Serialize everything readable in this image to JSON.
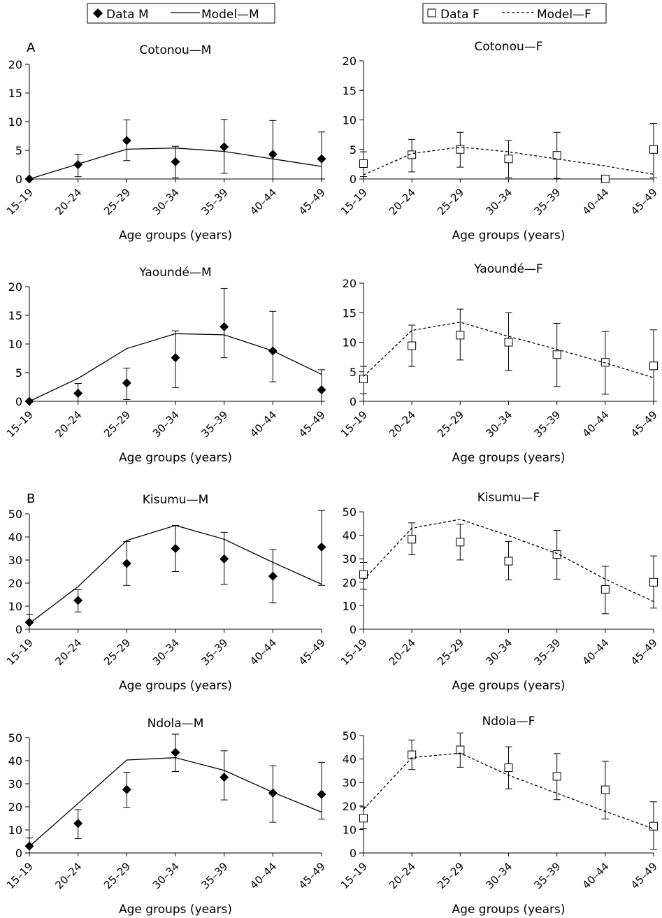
{
  "legends": {
    "male": {
      "data_label": "Data M",
      "model_label": "Model—M"
    },
    "female": {
      "data_label": "Data F",
      "model_label": "Model—F"
    }
  },
  "panel_labels": {
    "A": "A",
    "B": "B"
  },
  "chart_data": [
    {
      "type": "line",
      "title": "Cotonou—M",
      "xlabel": "Age groups (years)",
      "ylabel": "",
      "categories": [
        "15–19",
        "20–24",
        "25–29",
        "30–34",
        "35–39",
        "40–44",
        "45–49"
      ],
      "ylim": [
        0,
        20
      ],
      "yticks": [
        0,
        5,
        10,
        15,
        20
      ],
      "series": [
        {
          "name": "Data M",
          "kind": "points",
          "values": [
            0,
            2.5,
            6.7,
            3,
            5.6,
            4.3,
            3.5
          ],
          "err_low": [
            0,
            0.4,
            3.2,
            0.2,
            1,
            0,
            0
          ],
          "err_high": [
            0,
            4.3,
            10.3,
            5.7,
            10.4,
            10.2,
            8.2
          ]
        },
        {
          "name": "Model—M",
          "kind": "line",
          "values": [
            0,
            2.6,
            5.2,
            5.4,
            4.8,
            3.5,
            2.2
          ]
        }
      ]
    },
    {
      "type": "line",
      "title": "Cotonou—F",
      "xlabel": "Age groups (years)",
      "ylabel": "",
      "categories": [
        "15–19",
        "20–24",
        "25–29",
        "30–34",
        "35–39",
        "40–44",
        "45–49"
      ],
      "ylim": [
        0,
        20
      ],
      "yticks": [
        0,
        5,
        10,
        15,
        20
      ],
      "series": [
        {
          "name": "Data F",
          "kind": "points",
          "values": [
            2.6,
            4.1,
            5,
            3.4,
            4,
            0,
            5
          ],
          "err_low": [
            0.4,
            1.2,
            2,
            0.2,
            0.1,
            0,
            0.2
          ],
          "err_high": [
            4.6,
            6.7,
            7.9,
            6.5,
            7.9,
            0,
            9.4
          ]
        },
        {
          "name": "Model—F",
          "kind": "line",
          "values": [
            0.7,
            4.3,
            5.4,
            4.6,
            3.4,
            2.2,
            0.8
          ]
        }
      ]
    },
    {
      "type": "line",
      "title": "Yaoundé—M",
      "xlabel": "Age groups (years)",
      "ylabel": "",
      "categories": [
        "15–19",
        "20–24",
        "25–29",
        "30–34",
        "35–39",
        "40–44",
        "45–49"
      ],
      "ylim": [
        0,
        20
      ],
      "yticks": [
        0,
        5,
        10,
        15,
        20
      ],
      "series": [
        {
          "name": "Data M",
          "kind": "points",
          "values": [
            0,
            1.4,
            3.2,
            7.6,
            13,
            8.8,
            2
          ],
          "err_low": [
            0,
            0,
            0.3,
            2.4,
            7.6,
            3.4,
            0
          ],
          "err_high": [
            0,
            3.1,
            5.8,
            12.3,
            19.7,
            15.7,
            5.5
          ]
        },
        {
          "name": "Model—M",
          "kind": "line",
          "values": [
            0,
            4,
            9.2,
            11.8,
            11.6,
            8.8,
            4.7
          ]
        }
      ]
    },
    {
      "type": "line",
      "title": "Yaoundé—F",
      "xlabel": "Age groups (years)",
      "ylabel": "",
      "categories": [
        "15–19",
        "20–24",
        "25–29",
        "30–34",
        "35–39",
        "40–44",
        "45–49"
      ],
      "ylim": [
        0,
        20
      ],
      "yticks": [
        0,
        5,
        10,
        15,
        20
      ],
      "series": [
        {
          "name": "Data F",
          "kind": "points",
          "values": [
            3.8,
            9.4,
            11.2,
            10,
            7.9,
            6.6,
            6
          ],
          "err_low": [
            1.3,
            5.9,
            7,
            5.2,
            2.5,
            1.2,
            0
          ],
          "err_high": [
            5.9,
            12.9,
            15.6,
            15,
            13.2,
            11.8,
            12.1
          ]
        },
        {
          "name": "Model—F",
          "kind": "line",
          "values": [
            4.2,
            12,
            13.4,
            11,
            8.8,
            6.5,
            4
          ]
        }
      ]
    },
    {
      "type": "line",
      "title": "Kisumu—M",
      "xlabel": "Age groups (years)",
      "ylabel": "",
      "categories": [
        "15–19",
        "20–24",
        "25–29",
        "30–34",
        "35–39",
        "40–44",
        "45–49"
      ],
      "ylim": [
        0,
        50
      ],
      "yticks": [
        0,
        10,
        20,
        30,
        40,
        50
      ],
      "series": [
        {
          "name": "Data M",
          "kind": "points",
          "values": [
            3,
            12.5,
            28.5,
            35,
            30.5,
            23,
            35.6
          ],
          "err_low": [
            0,
            7.5,
            19,
            25,
            19.5,
            11.5,
            19
          ],
          "err_high": [
            6.5,
            17.2,
            38,
            45,
            42,
            34.5,
            51.5
          ]
        },
        {
          "name": "Model—M",
          "kind": "line",
          "values": [
            2.5,
            18.5,
            38.5,
            45,
            39,
            29,
            19.5
          ]
        }
      ]
    },
    {
      "type": "line",
      "title": "Kisumu—F",
      "xlabel": "Age groups (years)",
      "ylabel": "",
      "categories": [
        "15–19",
        "20–24",
        "25–29",
        "30–34",
        "35–39",
        "40–44",
        "45–49"
      ],
      "ylim": [
        0,
        50
      ],
      "yticks": [
        0,
        10,
        20,
        30,
        40,
        50
      ],
      "series": [
        {
          "name": "Data F",
          "kind": "points",
          "values": [
            23.3,
            38.3,
            37.1,
            29,
            31.8,
            17,
            20
          ],
          "err_low": [
            17,
            31.7,
            29.5,
            21,
            21.3,
            6.6,
            9
          ],
          "err_high": [
            28.4,
            45.3,
            44.7,
            37.4,
            42.1,
            26.8,
            31.2
          ]
        },
        {
          "name": "Model—F",
          "kind": "line",
          "values": [
            21,
            43,
            46.8,
            39.8,
            32.3,
            21.3,
            11.8
          ]
        }
      ]
    },
    {
      "type": "line",
      "title": "Ndola—M",
      "xlabel": "Age groups (years)",
      "ylabel": "",
      "categories": [
        "15–19",
        "20–24",
        "25–29",
        "30–34",
        "35–39",
        "40–44",
        "45–49"
      ],
      "ylim": [
        0,
        50
      ],
      "yticks": [
        0,
        10,
        20,
        30,
        40,
        50
      ],
      "series": [
        {
          "name": "Data M",
          "kind": "points",
          "values": [
            3,
            12.8,
            27.5,
            43.6,
            32.8,
            26,
            25.4
          ],
          "err_low": [
            0,
            6.2,
            19.8,
            35.3,
            23,
            13.3,
            14.7
          ],
          "err_high": [
            6.5,
            18.8,
            35,
            51.5,
            44.3,
            37.8,
            39.3
          ]
        },
        {
          "name": "Model—M",
          "kind": "line",
          "values": [
            2.8,
            21.5,
            40.3,
            41.3,
            35.8,
            26.3,
            17.7
          ]
        }
      ]
    },
    {
      "type": "line",
      "title": "Ndola—F",
      "xlabel": "Age groups (years)",
      "ylabel": "",
      "categories": [
        "15–19",
        "20–24",
        "25–29",
        "30–34",
        "35–39",
        "40–44",
        "45–49"
      ],
      "ylim": [
        0,
        50
      ],
      "yticks": [
        0,
        10,
        20,
        30,
        40,
        50
      ],
      "series": [
        {
          "name": "Data F",
          "kind": "points",
          "values": [
            14.8,
            41.8,
            43.9,
            36.3,
            32.6,
            26.9,
            11.4
          ],
          "err_low": [
            10.3,
            35.5,
            36.5,
            27.3,
            22.7,
            14.5,
            1.5
          ],
          "err_high": [
            19.6,
            48.1,
            51.1,
            45.2,
            42.3,
            39,
            21.8
          ]
        },
        {
          "name": "Model—F",
          "kind": "line",
          "values": [
            18.6,
            40.6,
            42.5,
            33.1,
            25.4,
            17.7,
            10.3
          ]
        }
      ]
    }
  ]
}
